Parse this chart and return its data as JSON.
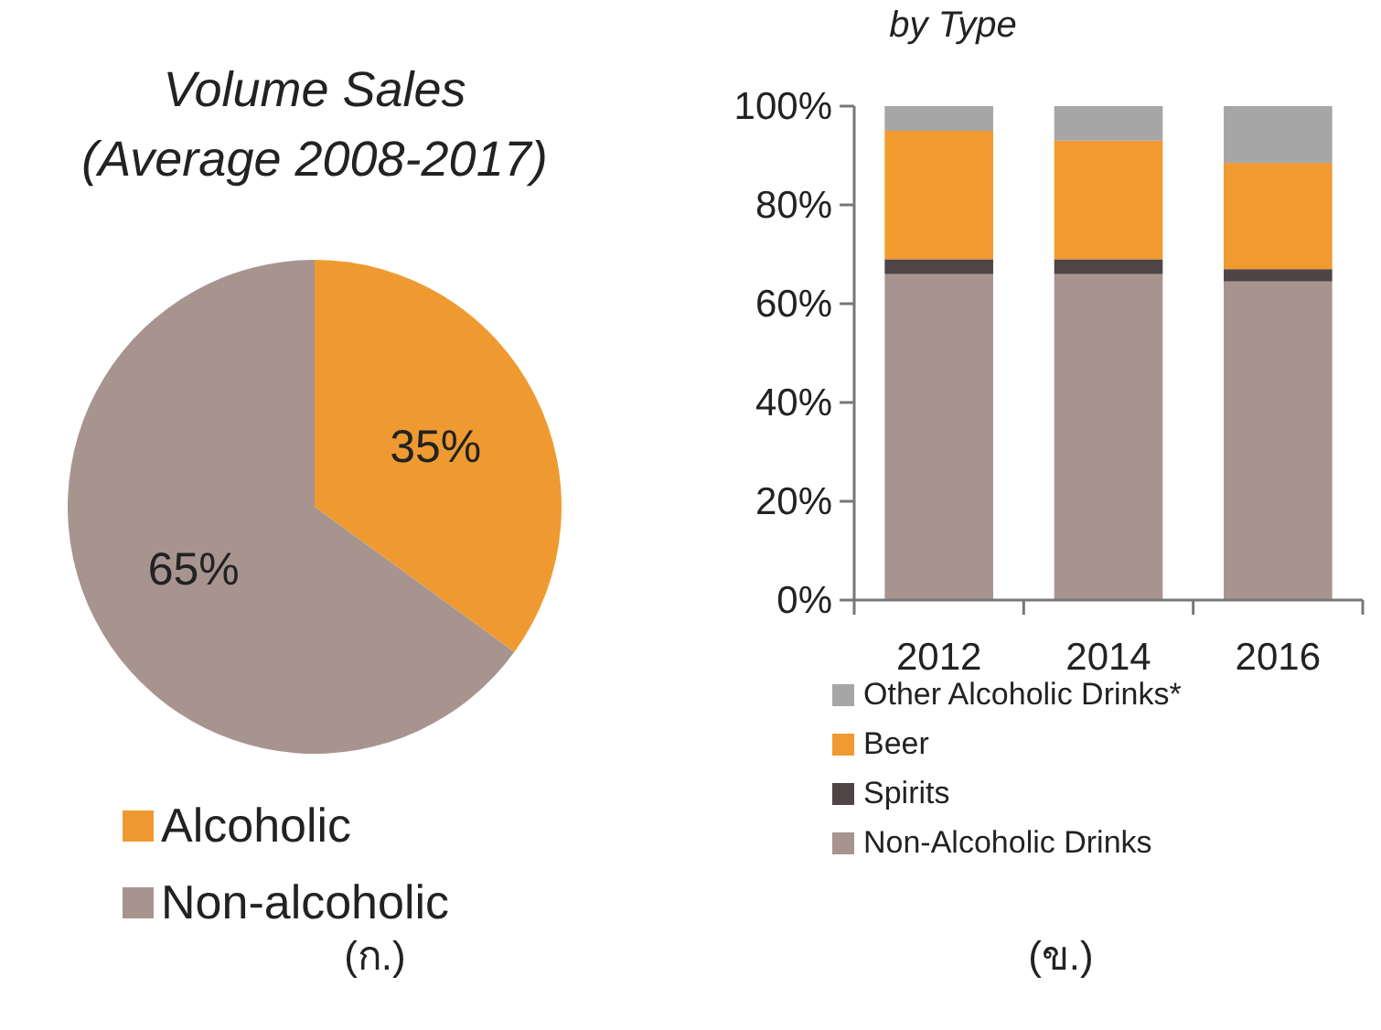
{
  "chart_data": [
    {
      "type": "pie",
      "title": "Volume Sales\n(Average 2008-2017)",
      "categories": [
        "Alcoholic",
        "Non-alcoholic"
      ],
      "values": [
        35,
        65
      ],
      "colors": [
        "#ef9a30",
        "#a8948f"
      ],
      "value_labels": [
        "35%",
        "65%"
      ],
      "legend": "bottom",
      "annotations": [
        "(ก.)"
      ]
    },
    {
      "type": "bar",
      "title": "by Type",
      "stacked": true,
      "categories": [
        "2012",
        "2014",
        "2016"
      ],
      "series": [
        {
          "name": "Non-Alcoholic Drinks",
          "color": "#a8948f",
          "values": [
            66,
            66,
            64.5
          ]
        },
        {
          "name": "Spirits",
          "color": "#4f4446",
          "values": [
            3,
            3,
            2.5
          ]
        },
        {
          "name": "Beer",
          "color": "#f09a30",
          "values": [
            26,
            24,
            21.5
          ]
        },
        {
          "name": "Other Alcoholic Drinks*",
          "color": "#a6a6a6",
          "values": [
            5,
            7,
            11.5
          ]
        }
      ],
      "ylim": [
        0,
        100
      ],
      "yticks": [
        {
          "value": 0,
          "label": "0%"
        },
        {
          "value": 20,
          "label": "20%"
        },
        {
          "value": 40,
          "label": "40%"
        },
        {
          "value": 60,
          "label": "60%"
        },
        {
          "value": 80,
          "label": "80%"
        },
        {
          "value": 100,
          "label": "100%"
        }
      ],
      "grid": false,
      "legend": "bottom",
      "annotations": [
        "(ข.)"
      ]
    }
  ]
}
